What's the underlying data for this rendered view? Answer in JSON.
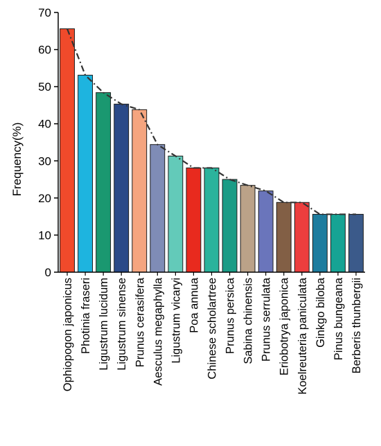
{
  "chart_data": {
    "type": "bar",
    "ylabel": "Frequency(%)",
    "ylim": [
      0,
      70
    ],
    "yticks": [
      0,
      10,
      20,
      30,
      40,
      50,
      60,
      70
    ],
    "categories": [
      "Ophiopogon japonicus",
      "Photinia fraseri",
      "Ligustrum lucidum",
      "Ligustrum sinense",
      "Prunus cerasifera",
      "Aesculus megaphylla",
      "Ligustrum vicaryi",
      "Poa annua",
      "Chinese scholartree",
      "Prunus persica",
      "Sabina chinensis",
      "Prunus serrulata",
      "Eriobotrya japonica",
      "Koelreuteria paniculata",
      "Ginkgo biloba",
      "Pinus bungeana",
      "Berberis thunbergii"
    ],
    "values": [
      65.6,
      53.1,
      48.4,
      45.3,
      43.8,
      34.4,
      31.3,
      28.1,
      28.1,
      25.0,
      23.4,
      21.9,
      18.8,
      18.8,
      15.6,
      15.6,
      15.6
    ],
    "colors": [
      "#f04a2b",
      "#1eb4df",
      "#1a9870",
      "#2b4a88",
      "#f5a57f",
      "#7f8cb6",
      "#63cab9",
      "#e82a1e",
      "#2bb39c",
      "#1a9c86",
      "#bba288",
      "#6a75bb",
      "#825f45",
      "#ec3e3e",
      "#1d7c9e",
      "#16a394",
      "#3b5a8a"
    ],
    "trend_line": {
      "style": "dash-dot",
      "color": "#333333"
    },
    "grid": false,
    "legend": "none"
  }
}
